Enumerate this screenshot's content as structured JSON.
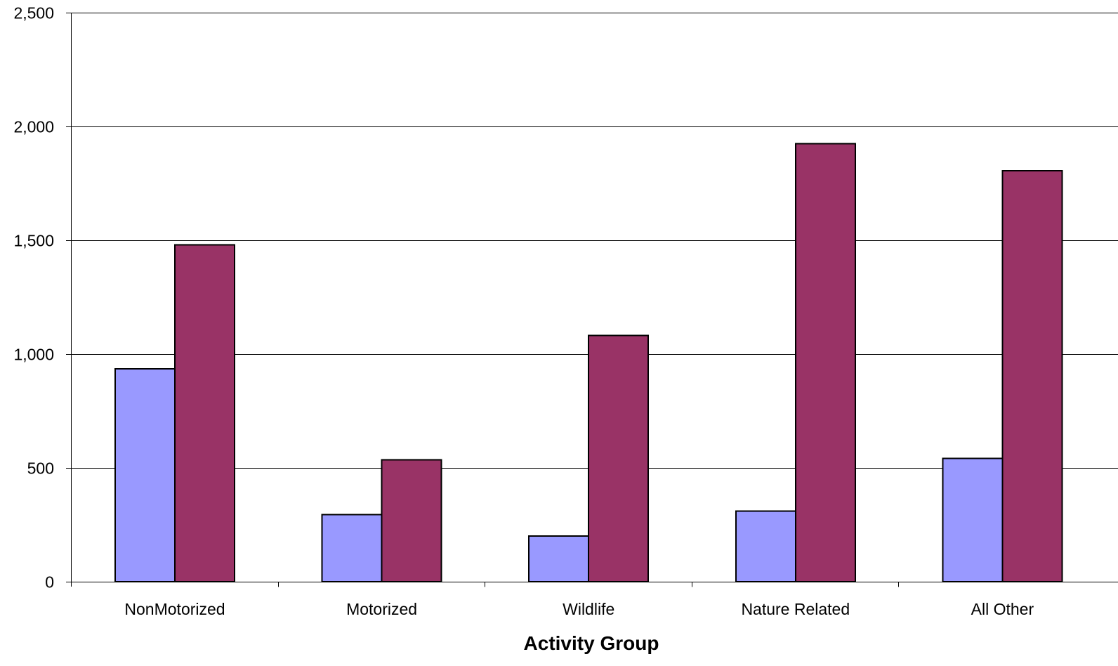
{
  "chart_data": {
    "type": "bar",
    "title": "",
    "xlabel": "Activity Group",
    "ylabel": "",
    "categories": [
      "NonMotorized",
      "Motorized",
      "Wildlife",
      "Nature Related",
      "All Other"
    ],
    "series": [
      {
        "color": "#9999ff",
        "values": [
          935,
          295,
          200,
          310,
          542
        ]
      },
      {
        "color": "#993366",
        "values": [
          1480,
          535,
          1082,
          1925,
          1805
        ]
      }
    ],
    "ylim": [
      0,
      2500
    ],
    "yticks": [
      0,
      500,
      1000,
      1500,
      2000,
      2500
    ],
    "ytick_labels": [
      "0",
      "500",
      "1,000",
      "1,500",
      "2,000",
      "2,500"
    ],
    "grid": true,
    "legend": "none"
  }
}
